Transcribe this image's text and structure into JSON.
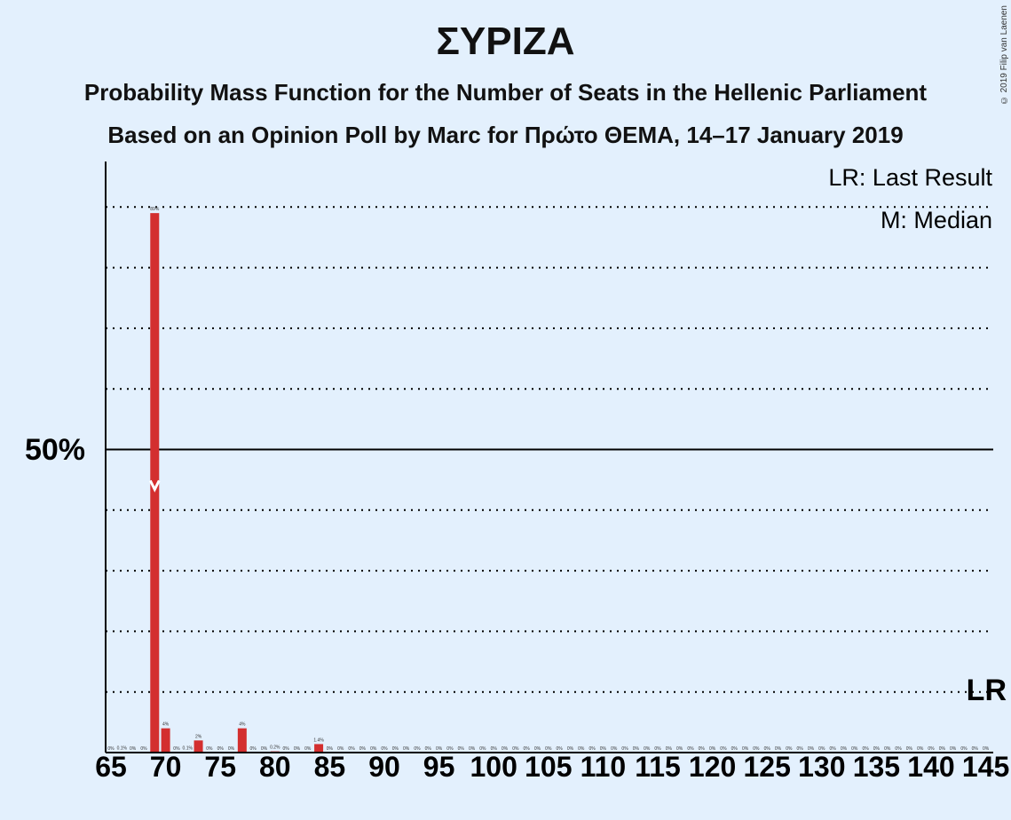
{
  "title": "ΣΥΡΙΖΑ",
  "subtitle1": "Probability Mass Function for the Number of Seats in the Hellenic Parliament",
  "subtitle2": "Based on an Opinion Poll by Marc for Πρώτο ΘΕΜΑ, 14–17 January 2019",
  "copyright": "© 2019 Filip van Laenen",
  "legend": {
    "lr": "LR: Last Result",
    "median": "M: Median"
  },
  "lr_marker": "LR",
  "ytick_label": "50%",
  "colors": {
    "bar": "#d32f2f",
    "background": "#e3f0fd",
    "axis": "#000000"
  },
  "chart_data": {
    "type": "bar",
    "x": [
      65,
      66,
      67,
      68,
      69,
      70,
      71,
      72,
      73,
      74,
      75,
      76,
      77,
      78,
      79,
      80,
      81,
      82,
      83,
      84,
      85,
      86,
      87,
      88,
      89,
      90,
      91,
      92,
      93,
      94,
      95,
      96,
      97,
      98,
      99,
      100,
      101,
      102,
      103,
      104,
      105,
      106,
      107,
      108,
      109,
      110,
      111,
      112,
      113,
      114,
      115,
      116,
      117,
      118,
      119,
      120,
      121,
      122,
      123,
      124,
      125,
      126,
      127,
      128,
      129,
      130,
      131,
      132,
      133,
      134,
      135,
      136,
      137,
      138,
      139,
      140,
      141,
      142,
      143,
      144,
      145
    ],
    "values": [
      0,
      0.1,
      0,
      0,
      89,
      4,
      0,
      0.1,
      2,
      0,
      0,
      0,
      4,
      0,
      0,
      0.2,
      0,
      0,
      0,
      1.4,
      0,
      0,
      0,
      0,
      0,
      0,
      0,
      0,
      0,
      0,
      0,
      0,
      0,
      0,
      0,
      0,
      0,
      0,
      0,
      0,
      0,
      0,
      0,
      0,
      0,
      0,
      0,
      0,
      0,
      0,
      0,
      0,
      0,
      0,
      0,
      0,
      0,
      0,
      0,
      0,
      0,
      0,
      0,
      0,
      0,
      0,
      0,
      0,
      0,
      0,
      0,
      0,
      0,
      0,
      0,
      0,
      0,
      0,
      0,
      0,
      0
    ],
    "labels": [
      "0%",
      "0.1%",
      "0%",
      "0%",
      "89%",
      "4%",
      "0%",
      "0.1%",
      "2%",
      "0%",
      "0%",
      "0%",
      "4%",
      "0%",
      "0%",
      "0.2%",
      "0%",
      "0%",
      "0%",
      "1.4%",
      "0%",
      "0%",
      "0%",
      "0%",
      "0%",
      "0%",
      "0%",
      "0%",
      "0%",
      "0%",
      "0%",
      "0%",
      "0%",
      "0%",
      "0%",
      "0%",
      "0%",
      "0%",
      "0%",
      "0%",
      "0%",
      "0%",
      "0%",
      "0%",
      "0%",
      "0%",
      "0%",
      "0%",
      "0%",
      "0%",
      "0%",
      "0%",
      "0%",
      "0%",
      "0%",
      "0%",
      "0%",
      "0%",
      "0%",
      "0%",
      "0%",
      "0%",
      "0%",
      "0%",
      "0%",
      "0%",
      "0%",
      "0%",
      "0%",
      "0%",
      "0%",
      "0%",
      "0%",
      "0%",
      "0%",
      "0%",
      "0%",
      "0%",
      "0%",
      "0%",
      "0%"
    ],
    "xticks": [
      65,
      70,
      75,
      80,
      85,
      90,
      95,
      100,
      105,
      110,
      115,
      120,
      125,
      130,
      135,
      140,
      145
    ],
    "ylim": [
      0,
      100
    ],
    "median": 69,
    "last_result": 145,
    "grid": "dotted every 10%, solid at 50%"
  }
}
